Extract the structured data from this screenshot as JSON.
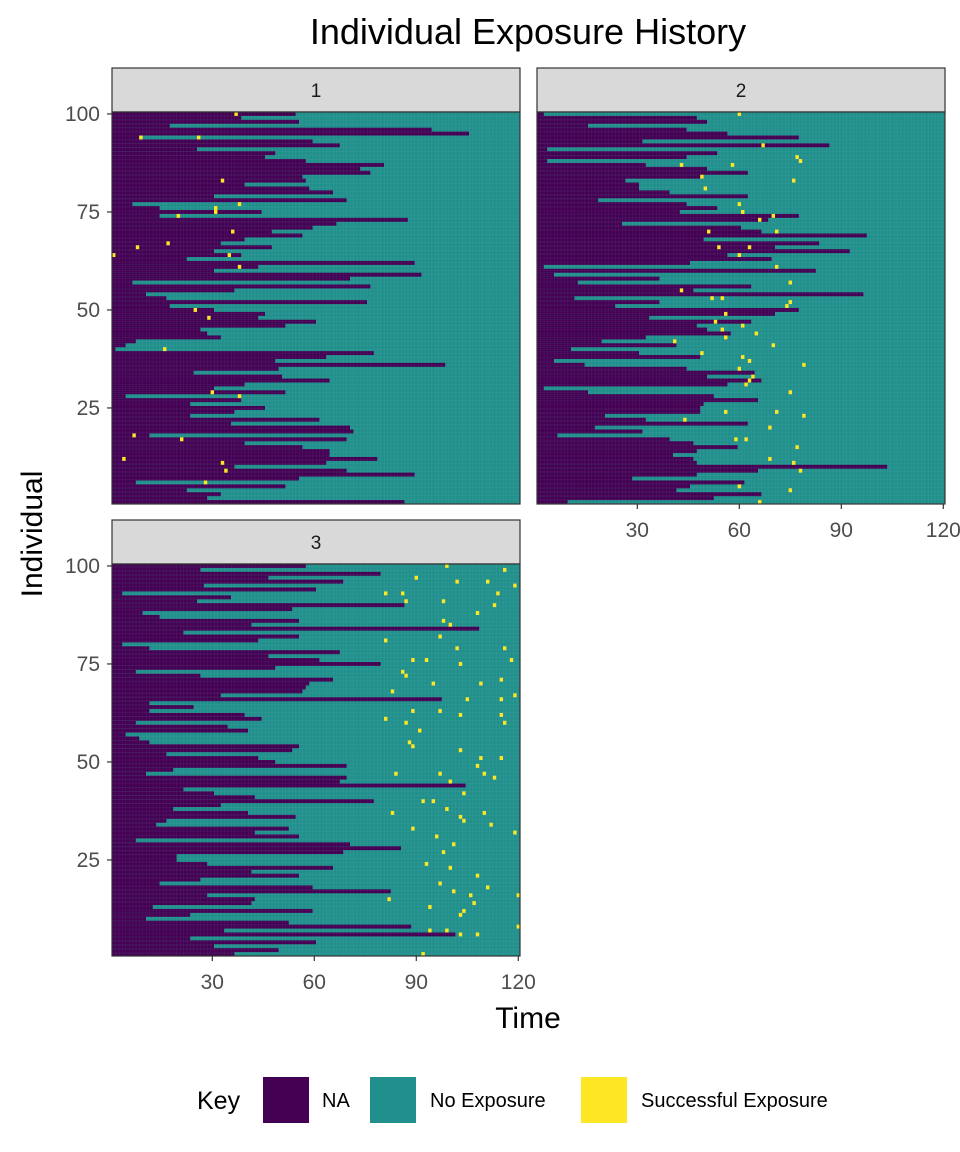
{
  "chart_data": {
    "type": "heatmap",
    "title": "Individual Exposure History",
    "xlabel": "Time",
    "ylabel": "Individual",
    "xlim": [
      1,
      120
    ],
    "ylim": [
      1,
      100
    ],
    "x_ticks": [
      30,
      60,
      90,
      120
    ],
    "y_ticks": [
      25,
      50,
      75,
      100
    ],
    "grid": false,
    "legend": {
      "title": "Key",
      "placement": "bottom",
      "entries": [
        {
          "label": "NA",
          "color": "#440154"
        },
        {
          "label": "No Exposure",
          "color": "#21908C"
        },
        {
          "label": "Successful Exposure",
          "color": "#FDE725"
        }
      ]
    },
    "facets": [
      {
        "label": "1",
        "entry_time_ranges": [
          [
            1,
            100,
            1,
            70
          ]
        ],
        "successful_exposures": [
          [
            37,
            100
          ],
          [
            9,
            94
          ],
          [
            26,
            94
          ],
          [
            33,
            83
          ],
          [
            38,
            77
          ],
          [
            31,
            76
          ],
          [
            31,
            75
          ],
          [
            20,
            74
          ],
          [
            8,
            66
          ],
          [
            17,
            67
          ],
          [
            36,
            70
          ],
          [
            1,
            64
          ],
          [
            35,
            64
          ],
          [
            38,
            61
          ],
          [
            25,
            50
          ],
          [
            29,
            48
          ],
          [
            16,
            40
          ],
          [
            30,
            29
          ],
          [
            38,
            28
          ],
          [
            7,
            18
          ],
          [
            21,
            17
          ],
          [
            4,
            12
          ],
          [
            33,
            11
          ],
          [
            34,
            9
          ],
          [
            28,
            6
          ]
        ]
      },
      {
        "label": "2",
        "entry_time_ranges": [
          [
            1,
            100,
            1,
            70
          ]
        ],
        "successful_exposures": [
          [
            60,
            100
          ],
          [
            67,
            92
          ],
          [
            77,
            89
          ],
          [
            78,
            88
          ],
          [
            43,
            87
          ],
          [
            58,
            87
          ],
          [
            49,
            84
          ],
          [
            76,
            83
          ],
          [
            50,
            81
          ],
          [
            60,
            77
          ],
          [
            61,
            75
          ],
          [
            66,
            73
          ],
          [
            70,
            74
          ],
          [
            71,
            70
          ],
          [
            51,
            70
          ],
          [
            54,
            66
          ],
          [
            63,
            66
          ],
          [
            60,
            64
          ],
          [
            71,
            61
          ],
          [
            75,
            57
          ],
          [
            43,
            55
          ],
          [
            52,
            53
          ],
          [
            55,
            53
          ],
          [
            75,
            52
          ],
          [
            74,
            51
          ],
          [
            56,
            49
          ],
          [
            53,
            47
          ],
          [
            61,
            46
          ],
          [
            55,
            45
          ],
          [
            65,
            44
          ],
          [
            56,
            43
          ],
          [
            41,
            42
          ],
          [
            70,
            41
          ],
          [
            49,
            39
          ],
          [
            61,
            38
          ],
          [
            63,
            37
          ],
          [
            79,
            36
          ],
          [
            60,
            35
          ],
          [
            64,
            33
          ],
          [
            63,
            32
          ],
          [
            62,
            31
          ],
          [
            75,
            29
          ],
          [
            56,
            24
          ],
          [
            71,
            24
          ],
          [
            79,
            23
          ],
          [
            44,
            22
          ],
          [
            69,
            20
          ],
          [
            59,
            17
          ],
          [
            62,
            17
          ],
          [
            77,
            15
          ],
          [
            69,
            12
          ],
          [
            76,
            11
          ],
          [
            78,
            9
          ],
          [
            60,
            5
          ],
          [
            75,
            4
          ],
          [
            66,
            1
          ]
        ]
      },
      {
        "label": "3",
        "entry_time_ranges": [
          [
            1,
            100,
            1,
            70
          ]
        ],
        "successful_exposures": [
          [
            99,
            100
          ],
          [
            116,
            99
          ],
          [
            90,
            97
          ],
          [
            102,
            96
          ],
          [
            111,
            96
          ],
          [
            119,
            95
          ],
          [
            81,
            93
          ],
          [
            86,
            93
          ],
          [
            114,
            93
          ],
          [
            87,
            91
          ],
          [
            98,
            91
          ],
          [
            113,
            90
          ],
          [
            108,
            88
          ],
          [
            98,
            86
          ],
          [
            100,
            85
          ],
          [
            81,
            81
          ],
          [
            97,
            82
          ],
          [
            102,
            79
          ],
          [
            116,
            79
          ],
          [
            89,
            76
          ],
          [
            93,
            76
          ],
          [
            118,
            76
          ],
          [
            103,
            75
          ],
          [
            86,
            73
          ],
          [
            87,
            72
          ],
          [
            115,
            71
          ],
          [
            95,
            70
          ],
          [
            109,
            70
          ],
          [
            83,
            68
          ],
          [
            105,
            66
          ],
          [
            115,
            66
          ],
          [
            119,
            67
          ],
          [
            89,
            63
          ],
          [
            97,
            63
          ],
          [
            103,
            62
          ],
          [
            115,
            62
          ],
          [
            116,
            60
          ],
          [
            87,
            60
          ],
          [
            81,
            61
          ],
          [
            91,
            58
          ],
          [
            88,
            55
          ],
          [
            89,
            54
          ],
          [
            103,
            53
          ],
          [
            109,
            51
          ],
          [
            115,
            51
          ],
          [
            108,
            49
          ],
          [
            84,
            47
          ],
          [
            97,
            47
          ],
          [
            110,
            47
          ],
          [
            113,
            46
          ],
          [
            100,
            45
          ],
          [
            104,
            42
          ],
          [
            95,
            40
          ],
          [
            92,
            40
          ],
          [
            99,
            38
          ],
          [
            103,
            36
          ],
          [
            104,
            35
          ],
          [
            110,
            37
          ],
          [
            83,
            37
          ],
          [
            112,
            34
          ],
          [
            89,
            33
          ],
          [
            119,
            32
          ],
          [
            96,
            31
          ],
          [
            101,
            29
          ],
          [
            98,
            27
          ],
          [
            93,
            24
          ],
          [
            100,
            23
          ],
          [
            108,
            21
          ],
          [
            97,
            19
          ],
          [
            111,
            18
          ],
          [
            82,
            15
          ],
          [
            101,
            17
          ],
          [
            106,
            16
          ],
          [
            107,
            14
          ],
          [
            94,
            13
          ],
          [
            104,
            12
          ],
          [
            103,
            11
          ],
          [
            94,
            7
          ],
          [
            99,
            7
          ],
          [
            103,
            6
          ],
          [
            108,
            6
          ],
          [
            92,
            1
          ],
          [
            120,
            16
          ],
          [
            120,
            8
          ]
        ]
      }
    ]
  }
}
